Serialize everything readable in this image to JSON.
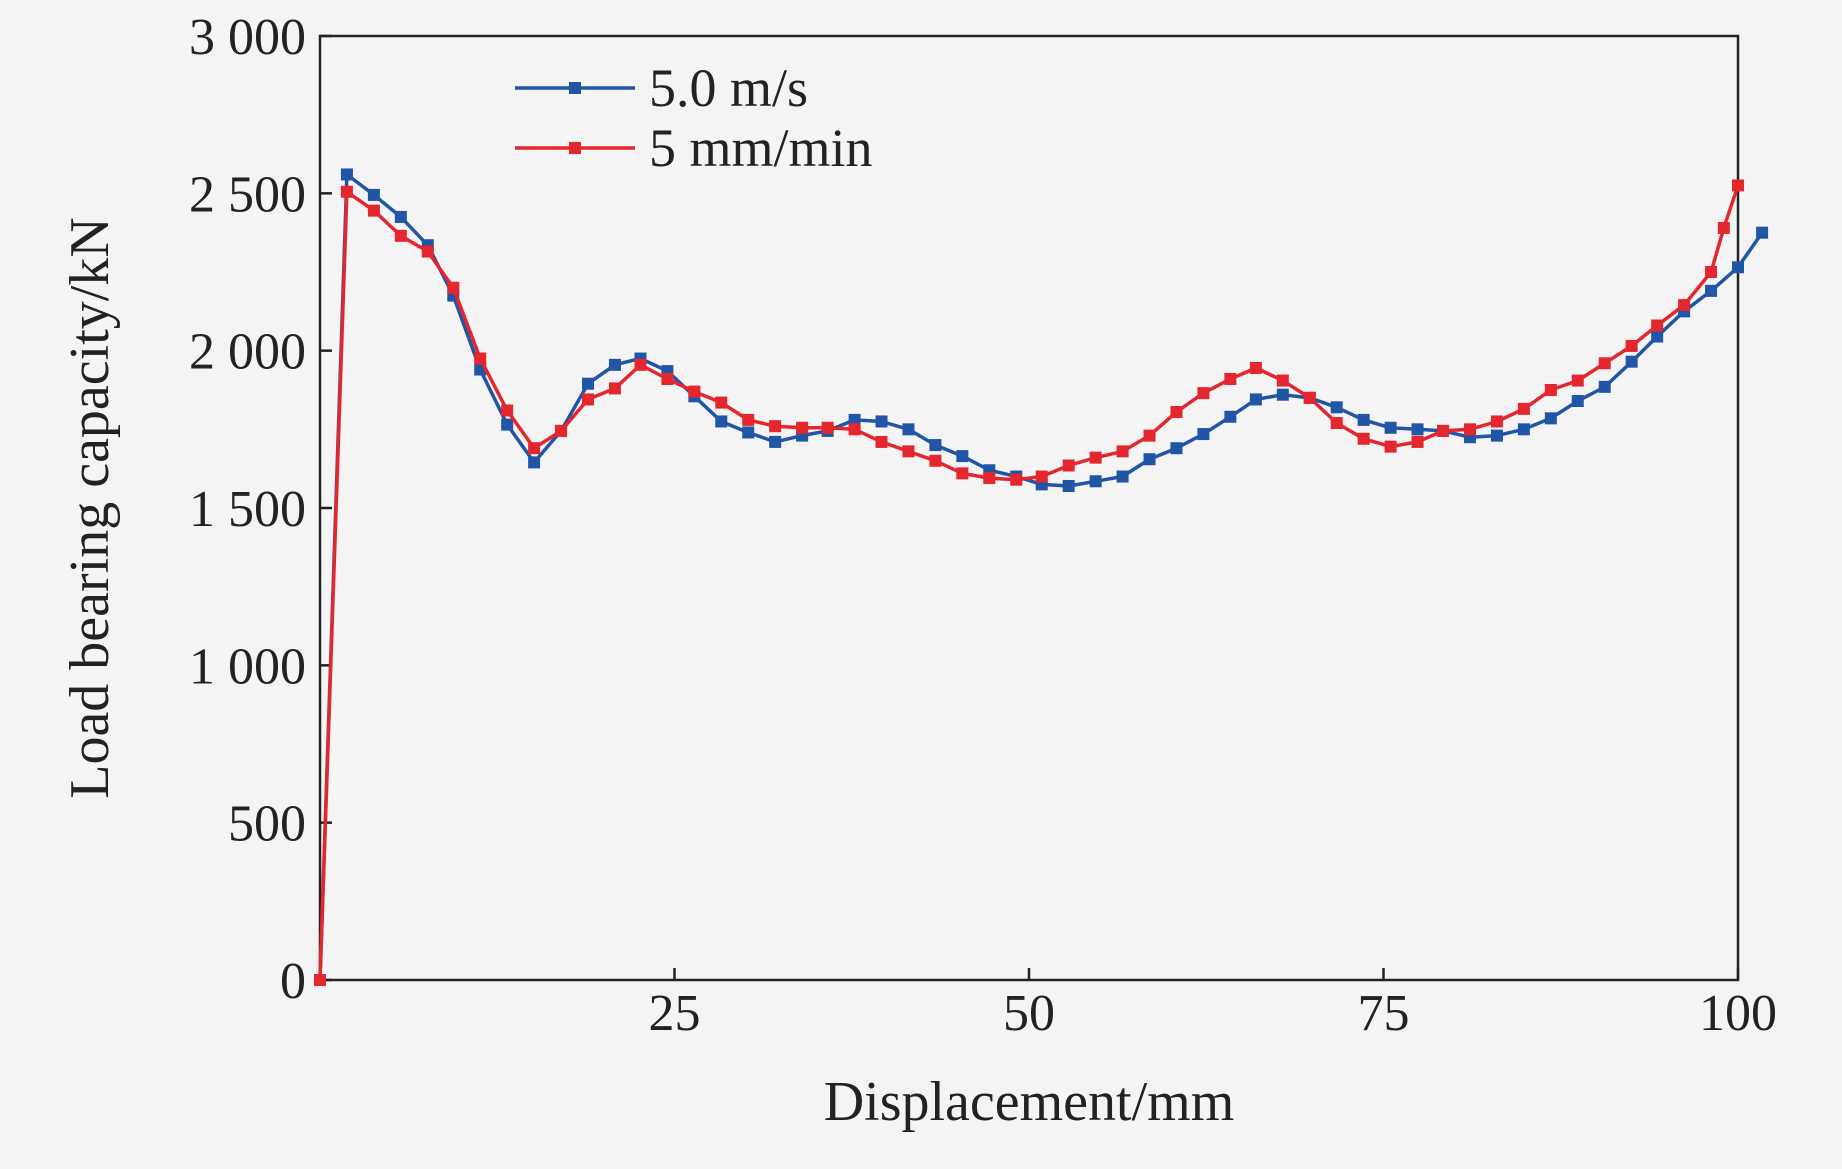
{
  "chart_data": {
    "type": "line",
    "title": "",
    "xlabel": "Displacement/mm",
    "ylabel": "Load bearing capacity/kN",
    "xlim": [
      0,
      100
    ],
    "ylim": [
      0,
      3000
    ],
    "x_ticks": [
      25,
      50,
      75,
      100
    ],
    "x_tick_labels": [
      "25",
      "50",
      "75",
      "100"
    ],
    "y_ticks": [
      0,
      500,
      1000,
      1500,
      2000,
      2500,
      3000
    ],
    "y_tick_labels": [
      "0",
      "500",
      "1 000",
      "1 500",
      "2 000",
      "2 500",
      "3 000"
    ],
    "grid": false,
    "legend_position": "top-left",
    "series": [
      {
        "name": "5.0 m/s",
        "color": "#2155a5",
        "marker": "square",
        "points": [
          [
            0,
            0
          ],
          [
            1.9,
            2560
          ],
          [
            3.8,
            2495
          ],
          [
            5.7,
            2425
          ],
          [
            7.6,
            2335
          ],
          [
            9.4,
            2175
          ],
          [
            11.3,
            1940
          ],
          [
            13.2,
            1765
          ],
          [
            15.1,
            1645
          ],
          [
            17.0,
            1745
          ],
          [
            18.9,
            1895
          ],
          [
            20.8,
            1955
          ],
          [
            22.6,
            1975
          ],
          [
            24.5,
            1935
          ],
          [
            26.4,
            1855
          ],
          [
            28.3,
            1775
          ],
          [
            30.2,
            1740
          ],
          [
            32.1,
            1710
          ],
          [
            34.0,
            1730
          ],
          [
            35.8,
            1745
          ],
          [
            37.7,
            1780
          ],
          [
            39.6,
            1775
          ],
          [
            41.5,
            1750
          ],
          [
            43.4,
            1700
          ],
          [
            45.3,
            1665
          ],
          [
            47.2,
            1620
          ],
          [
            49.1,
            1600
          ],
          [
            50.9,
            1575
          ],
          [
            52.8,
            1570
          ],
          [
            54.7,
            1585
          ],
          [
            56.6,
            1600
          ],
          [
            58.5,
            1655
          ],
          [
            60.4,
            1690
          ],
          [
            62.3,
            1735
          ],
          [
            64.2,
            1790
          ],
          [
            66.0,
            1845
          ],
          [
            67.9,
            1860
          ],
          [
            69.8,
            1850
          ],
          [
            71.7,
            1820
          ],
          [
            73.6,
            1780
          ],
          [
            75.5,
            1755
          ],
          [
            77.4,
            1750
          ],
          [
            79.2,
            1745
          ],
          [
            81.1,
            1725
          ],
          [
            83.0,
            1730
          ],
          [
            84.9,
            1750
          ],
          [
            86.8,
            1785
          ],
          [
            88.7,
            1840
          ],
          [
            90.6,
            1885
          ],
          [
            92.5,
            1965
          ],
          [
            94.3,
            2045
          ],
          [
            96.2,
            2125
          ],
          [
            98.1,
            2190
          ],
          [
            100.0,
            2265
          ],
          [
            101.7,
            2375
          ]
        ]
      },
      {
        "name": "5 mm/min",
        "color": "#e4262e",
        "marker": "square",
        "points": [
          [
            0,
            0
          ],
          [
            1.9,
            2505
          ],
          [
            3.8,
            2445
          ],
          [
            5.7,
            2365
          ],
          [
            7.6,
            2315
          ],
          [
            9.4,
            2200
          ],
          [
            11.3,
            1975
          ],
          [
            13.2,
            1810
          ],
          [
            15.1,
            1690
          ],
          [
            17.0,
            1745
          ],
          [
            18.9,
            1845
          ],
          [
            20.8,
            1880
          ],
          [
            22.6,
            1955
          ],
          [
            24.5,
            1910
          ],
          [
            26.4,
            1870
          ],
          [
            28.3,
            1835
          ],
          [
            30.2,
            1780
          ],
          [
            32.1,
            1760
          ],
          [
            34.0,
            1755
          ],
          [
            35.8,
            1755
          ],
          [
            37.7,
            1750
          ],
          [
            39.6,
            1710
          ],
          [
            41.5,
            1680
          ],
          [
            43.4,
            1650
          ],
          [
            45.3,
            1610
          ],
          [
            47.2,
            1595
          ],
          [
            49.1,
            1590
          ],
          [
            50.9,
            1600
          ],
          [
            52.8,
            1635
          ],
          [
            54.7,
            1660
          ],
          [
            56.6,
            1680
          ],
          [
            58.5,
            1730
          ],
          [
            60.4,
            1805
          ],
          [
            62.3,
            1865
          ],
          [
            64.2,
            1910
          ],
          [
            66.0,
            1945
          ],
          [
            67.9,
            1905
          ],
          [
            69.8,
            1850
          ],
          [
            71.7,
            1770
          ],
          [
            73.6,
            1720
          ],
          [
            75.5,
            1695
          ],
          [
            77.4,
            1710
          ],
          [
            79.2,
            1745
          ],
          [
            81.1,
            1750
          ],
          [
            83.0,
            1775
          ],
          [
            84.9,
            1815
          ],
          [
            86.8,
            1875
          ],
          [
            88.7,
            1905
          ],
          [
            90.6,
            1960
          ],
          [
            92.5,
            2015
          ],
          [
            94.3,
            2080
          ],
          [
            96.2,
            2145
          ],
          [
            98.1,
            2250
          ],
          [
            99.0,
            2390
          ],
          [
            100.0,
            2525
          ]
        ]
      }
    ]
  }
}
